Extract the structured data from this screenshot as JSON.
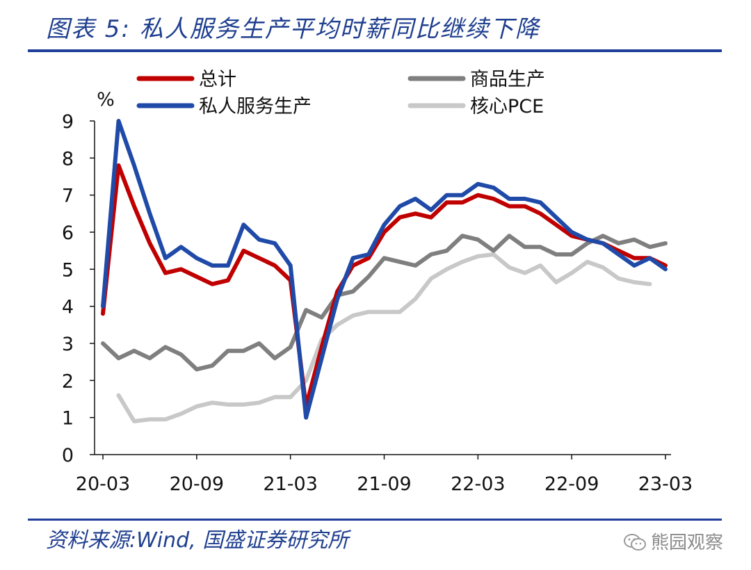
{
  "header": {
    "title": "图表 5:  私人服务生产平均时薪同比继续下降"
  },
  "footer": {
    "source": "资料来源:Wind, 国盛证券研究所",
    "watermark": "熊园观察"
  },
  "chart_data": {
    "type": "line",
    "ylabel": "%",
    "ylim": [
      0,
      9
    ],
    "yticks": [
      "0",
      "1",
      "2",
      "3",
      "4",
      "5",
      "6",
      "7",
      "8",
      "9"
    ],
    "x": [
      "2020-03",
      "2020-04",
      "2020-05",
      "2020-06",
      "2020-07",
      "2020-08",
      "2020-09",
      "2020-10",
      "2020-11",
      "2020-12",
      "2021-01",
      "2021-02",
      "2021-03",
      "2021-04",
      "2021-05",
      "2021-06",
      "2021-07",
      "2021-08",
      "2021-09",
      "2021-10",
      "2021-11",
      "2021-12",
      "2022-01",
      "2022-02",
      "2022-03",
      "2022-04",
      "2022-05",
      "2022-06",
      "2022-07",
      "2022-08",
      "2022-09",
      "2022-10",
      "2022-11",
      "2022-12",
      "2023-01",
      "2023-02",
      "2023-03"
    ],
    "xtick_labels": [
      "20-03",
      "20-09",
      "21-03",
      "21-09",
      "22-03",
      "22-09",
      "23-03"
    ],
    "xtick_indices": [
      0,
      6,
      12,
      18,
      24,
      30,
      36
    ],
    "legend_position": "top",
    "series": [
      {
        "name": "总计",
        "color": "#c00000",
        "values": [
          3.8,
          7.8,
          6.7,
          5.7,
          4.9,
          5.0,
          4.8,
          4.6,
          4.7,
          5.5,
          5.3,
          5.1,
          4.7,
          1.3,
          2.9,
          4.4,
          5.1,
          5.3,
          6.0,
          6.4,
          6.5,
          6.4,
          6.8,
          6.8,
          7.0,
          6.9,
          6.7,
          6.7,
          6.5,
          6.2,
          5.9,
          5.8,
          5.7,
          5.5,
          5.3,
          5.3,
          5.1
        ]
      },
      {
        "name": "商品生产",
        "color": "#7f7f7f",
        "values": [
          3.0,
          2.6,
          2.8,
          2.6,
          2.9,
          2.7,
          2.3,
          2.4,
          2.8,
          2.8,
          3.0,
          2.6,
          2.9,
          3.9,
          3.7,
          4.3,
          4.4,
          4.8,
          5.3,
          5.2,
          5.1,
          5.4,
          5.5,
          5.9,
          5.8,
          5.5,
          5.9,
          5.6,
          5.6,
          5.4,
          5.4,
          5.7,
          5.9,
          5.7,
          5.8,
          5.6,
          5.7
        ]
      },
      {
        "name": "私人服务生产",
        "color": "#1f4aa8",
        "values": [
          4.0,
          9.0,
          7.8,
          6.5,
          5.3,
          5.6,
          5.3,
          5.1,
          5.1,
          6.2,
          5.8,
          5.7,
          5.1,
          1.0,
          2.6,
          4.2,
          5.3,
          5.4,
          6.2,
          6.7,
          6.9,
          6.6,
          7.0,
          7.0,
          7.3,
          7.2,
          6.9,
          6.9,
          6.8,
          6.4,
          6.0,
          5.8,
          5.7,
          5.4,
          5.1,
          5.3,
          5.0
        ]
      },
      {
        "name": "核心PCE",
        "color": "#c8c8c8",
        "values": [
          null,
          1.6,
          0.9,
          0.95,
          0.95,
          1.1,
          1.3,
          1.4,
          1.35,
          1.35,
          1.4,
          1.55,
          1.55,
          2.0,
          3.1,
          3.5,
          3.75,
          3.85,
          3.85,
          3.85,
          4.2,
          4.75,
          5.0,
          5.2,
          5.35,
          5.4,
          5.05,
          4.9,
          5.1,
          4.65,
          4.9,
          5.2,
          5.05,
          4.75,
          4.65,
          4.6,
          null
        ]
      }
    ]
  }
}
